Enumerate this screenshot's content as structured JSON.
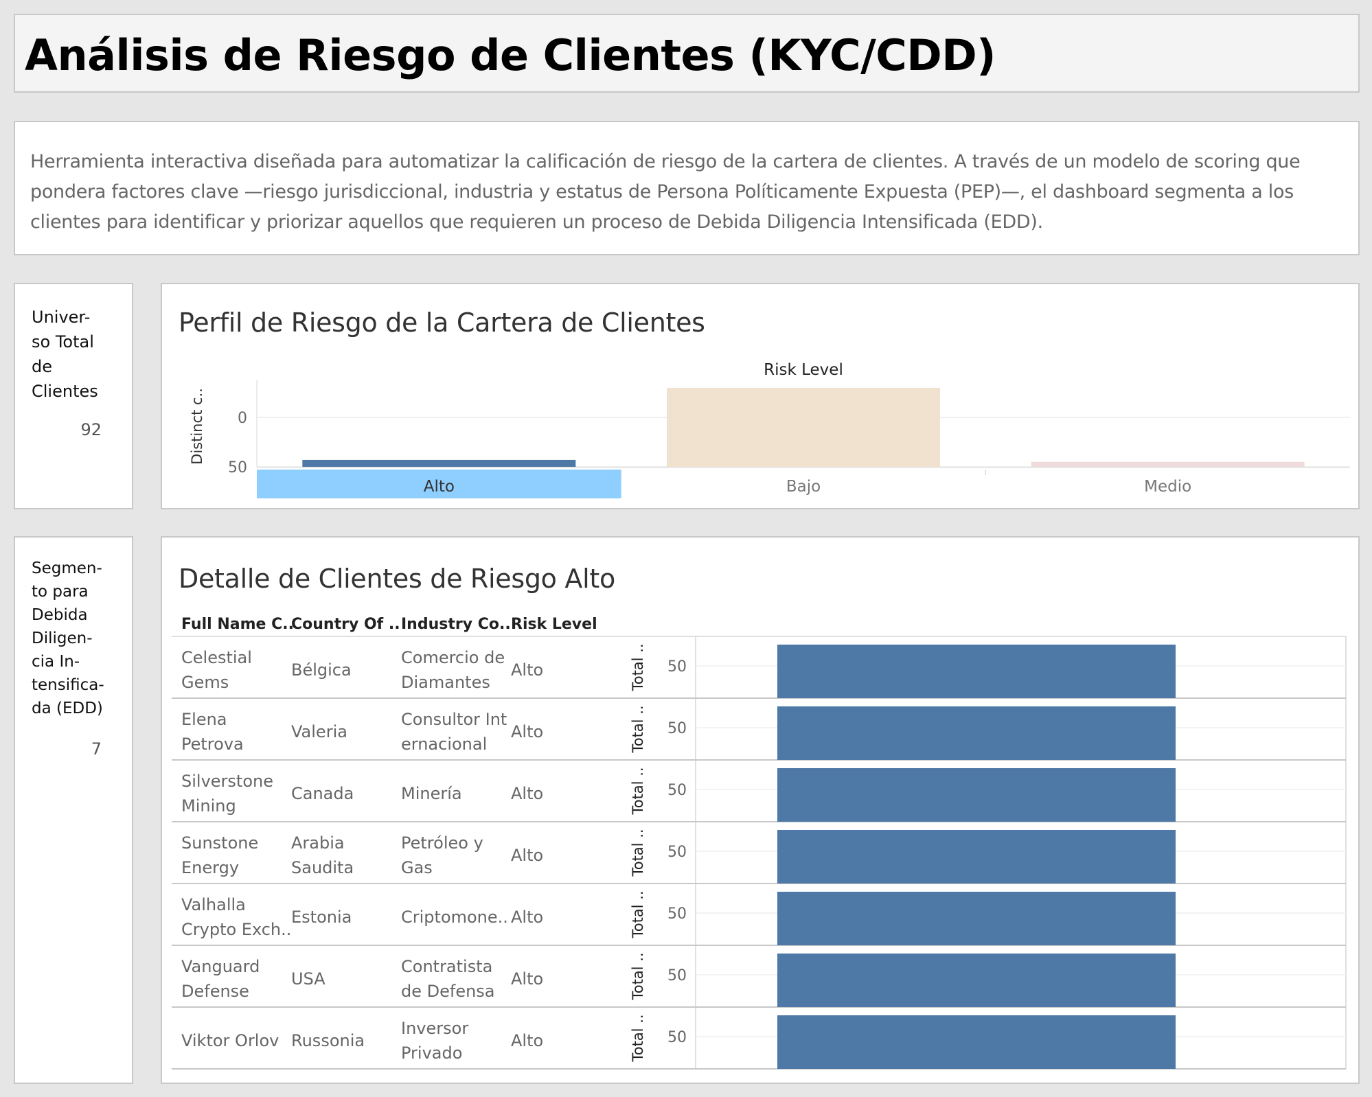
{
  "header": {
    "title": "Análisis de Riesgo de Clientes (KYC/CDD)"
  },
  "description": "Herramienta interactiva diseñada para automatizar la calificación de riesgo de la cartera de clientes. A través de un modelo de scoring que pondera factores clave —riesgo jurisdiccional, industria y estatus de Persona Políticamente Expuesta (PEP)—, el dashboard segmenta a los clientes para identificar y priorizar aquellos que requieren un proceso de Debida Diligencia Intensificada (EDD).",
  "kpis": {
    "total": {
      "label": "Univer-\nso Total\nde\nClientes",
      "value": "92"
    },
    "edd": {
      "label": "Segmen-\nto para\nDebida\nDiligen-\ncia In-\ntensifica-\nda (EDD)",
      "value": "7"
    }
  },
  "risk_chart": {
    "title": "Perfil de Riesgo de la Cartera de Clientes",
    "column_header": "Risk Level",
    "ylabel": "Distinct c..",
    "yticks": [
      "50",
      "0"
    ],
    "selected": "Alto"
  },
  "detail_table": {
    "title": "Detalle de Clientes de Riesgo Alto",
    "columns": [
      "Full Name C..",
      "Country Of ..",
      "Industry Co..",
      "Risk Level"
    ],
    "measure_label": "Total ..",
    "rows": [
      {
        "name": "Celestial\nGems",
        "country": "Bélgica",
        "industry": "Comercio de\nDiamantes",
        "risk": "Alto",
        "total_label": "50"
      },
      {
        "name": "Elena\nPetrova",
        "country": "Valeria",
        "industry": "Consultor Int\nernacional",
        "risk": "Alto",
        "total_label": "50"
      },
      {
        "name": "Silverstone\nMining",
        "country": "Canada",
        "industry": "Minería",
        "risk": "Alto",
        "total_label": "50"
      },
      {
        "name": "Sunstone\nEnergy",
        "country": "Arabia\nSaudita",
        "industry": "Petróleo y\nGas",
        "risk": "Alto",
        "total_label": "50"
      },
      {
        "name": "Valhalla\nCrypto Exch..",
        "country": "Estonia",
        "industry": "Criptomone..",
        "risk": "Alto",
        "total_label": "50"
      },
      {
        "name": "Vanguard\nDefense",
        "country": "USA",
        "industry": "Contratista\nde Defensa",
        "risk": "Alto",
        "total_label": "50"
      },
      {
        "name": "Viktor Orlov",
        "country": "Russonia",
        "industry": "Inversor\nPrivado",
        "risk": "Alto",
        "total_label": "50"
      }
    ]
  },
  "colors": {
    "alto": "#4e79a7",
    "bajo": "#f1e2d0",
    "medio": "#f0dcdc",
    "selected_highlight": "#8fcfff",
    "bar": "#4e79a7"
  },
  "chart_data": [
    {
      "type": "bar",
      "title": "Perfil de Riesgo de la Cartera de Clientes",
      "xlabel": "Risk Level",
      "ylabel": "Distinct c..",
      "categories": [
        "Alto",
        "Bajo",
        "Medio"
      ],
      "values": [
        7,
        80,
        5
      ],
      "ylim": [
        0,
        82
      ],
      "yticks": [
        0,
        50
      ],
      "grid": true
    },
    {
      "type": "bar",
      "orientation": "horizontal",
      "title": "Detalle de Clientes de Riesgo Alto",
      "ylabel": "Total ..",
      "categories": [
        "Celestial Gems",
        "Elena Petrova",
        "Silverstone Mining",
        "Sunstone Energy",
        "Valhalla Crypto Exch..",
        "Vanguard Defense",
        "Viktor Orlov"
      ],
      "values": [
        50,
        50,
        50,
        50,
        50,
        50,
        50
      ],
      "yticks": [
        50
      ]
    }
  ]
}
